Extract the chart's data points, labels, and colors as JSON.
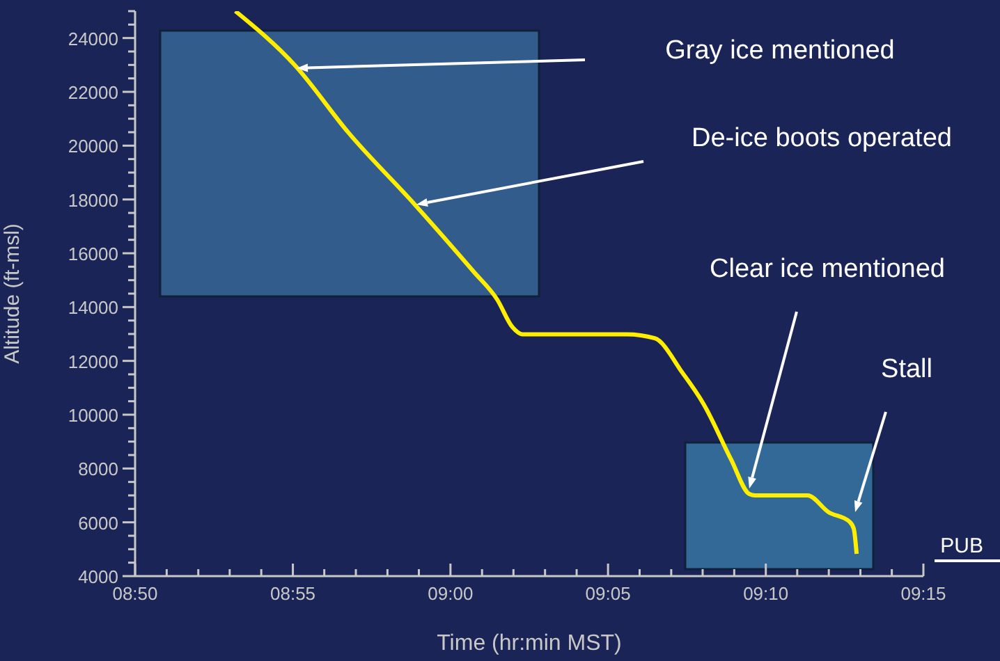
{
  "chart_data": {
    "type": "line",
    "xlabel": "Time (hr:min MST)",
    "ylabel": "Altitude (ft-msl)",
    "series": [
      {
        "color": "#ffee00",
        "x": [
          8.8863,
          8.918,
          8.946,
          8.9813,
          9.0122,
          9.0247,
          9.0328,
          9.038,
          9.0932,
          9.108,
          9.1227,
          9.1337,
          9.1483,
          9.158,
          9.161,
          9.1888,
          9.1998,
          9.211,
          9.2132,
          9.2147
        ],
        "values": [
          25000,
          22970,
          20490,
          17800,
          15320,
          14280,
          13250,
          12990,
          12990,
          12840,
          11550,
          10410,
          8340,
          7050,
          7000,
          7000,
          6380,
          6020,
          5760,
          4830
        ]
      }
    ],
    "xlim": [
      8.8333,
      9.25
    ],
    "xticks": [
      {
        "value": 8.8333,
        "label": "08:50"
      },
      {
        "value": 8.85,
        "label": null
      },
      {
        "value": 8.8667,
        "label": null
      },
      {
        "value": 8.8833,
        "label": null
      },
      {
        "value": 8.9,
        "label": null
      },
      {
        "value": 8.9167,
        "label": "08:55"
      },
      {
        "value": 8.9333,
        "label": null
      },
      {
        "value": 8.95,
        "label": null
      },
      {
        "value": 8.9667,
        "label": null
      },
      {
        "value": 8.9833,
        "label": null
      },
      {
        "value": 9,
        "label": "09:00"
      },
      {
        "value": 9.0167,
        "label": null
      },
      {
        "value": 9.0333,
        "label": null
      },
      {
        "value": 9.05,
        "label": null
      },
      {
        "value": 9.0667,
        "label": null
      },
      {
        "value": 9.0833,
        "label": "09:05"
      },
      {
        "value": 9.1,
        "label": null
      },
      {
        "value": 9.1167,
        "label": null
      },
      {
        "value": 9.1333,
        "label": null
      },
      {
        "value": 9.15,
        "label": null
      },
      {
        "value": 9.1667,
        "label": "09:10"
      },
      {
        "value": 9.1833,
        "label": null
      },
      {
        "value": 9.2,
        "label": null
      },
      {
        "value": 9.2167,
        "label": null
      },
      {
        "value": 9.2333,
        "label": null
      },
      {
        "value": 9.25,
        "label": "09:15"
      }
    ],
    "ylim": [
      4000,
      25000
    ],
    "yticks": [
      4000,
      {
        "value": 4500,
        "label": null
      },
      {
        "value": 5000,
        "label": null
      },
      {
        "value": 5500,
        "label": null
      },
      6000,
      {
        "value": 6500,
        "label": null
      },
      {
        "value": 7000,
        "label": null
      },
      {
        "value": 7500,
        "label": null
      },
      8000,
      {
        "value": 8500,
        "label": null
      },
      {
        "value": 9000,
        "label": null
      },
      {
        "value": 9500,
        "label": null
      },
      10000,
      {
        "value": 10500,
        "label": null
      },
      {
        "value": 11000,
        "label": null
      },
      {
        "value": 11500,
        "label": null
      },
      12000,
      {
        "value": 12500,
        "label": null
      },
      {
        "value": 13000,
        "label": null
      },
      {
        "value": 13500,
        "label": null
      },
      14000,
      {
        "value": 14500,
        "label": null
      },
      {
        "value": 15000,
        "label": null
      },
      {
        "value": 15500,
        "label": null
      },
      16000,
      {
        "value": 16500,
        "label": null
      },
      {
        "value": 17000,
        "label": null
      },
      {
        "value": 17500,
        "label": null
      },
      18000,
      {
        "value": 18500,
        "label": null
      },
      {
        "value": 19000,
        "label": null
      },
      {
        "value": 19500,
        "label": null
      },
      20000,
      {
        "value": 20500,
        "label": null
      },
      {
        "value": 21000,
        "label": null
      },
      {
        "value": 21500,
        "label": null
      },
      22000,
      {
        "value": 22500,
        "label": null
      },
      {
        "value": 23000,
        "label": null
      },
      {
        "value": 23500,
        "label": null
      },
      24000,
      {
        "value": 24500,
        "label": null
      },
      {
        "value": 25000,
        "label": null
      }
    ],
    "ref_lines": [
      {
        "axis": "y",
        "value": 4570,
        "label": "PUB",
        "color": "#ffffff"
      }
    ],
    "annotations": [
      "Gray ice mentioned",
      "De-ice boots operated",
      "Clear ice mentioned",
      "Stall"
    ],
    "marker": "none",
    "line_style": "solid"
  }
}
